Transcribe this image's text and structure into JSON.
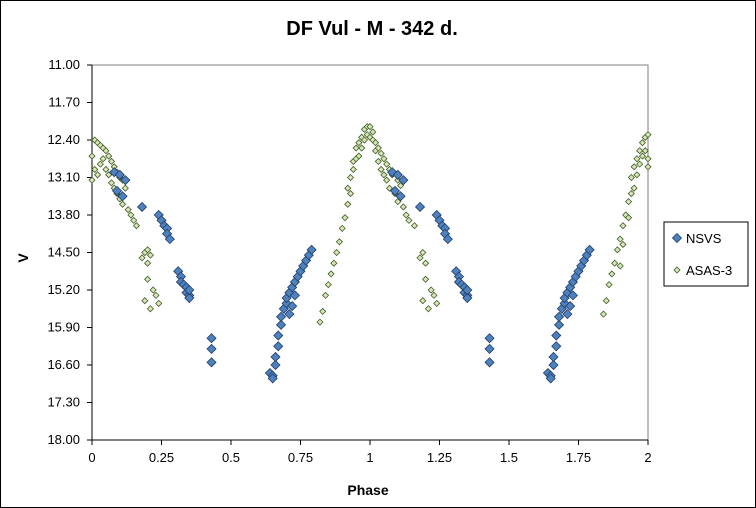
{
  "chart_data": {
    "type": "scatter",
    "title": "DF Vul - M - 342 d.",
    "xlabel": "Phase",
    "ylabel": "V",
    "xlim": [
      0,
      2
    ],
    "ylim": [
      18.0,
      11.0
    ],
    "y_inverted": true,
    "x_ticks": [
      "0",
      "0.25",
      "0.5",
      "0.75",
      "1",
      "1.25",
      "1.5",
      "1.75",
      "2"
    ],
    "y_ticks": [
      "11.00",
      "11.70",
      "12.40",
      "13.10",
      "13.80",
      "14.50",
      "15.20",
      "15.90",
      "16.60",
      "17.30",
      "18.00"
    ],
    "grid": false,
    "legend_position": "right",
    "series": [
      {
        "name": "NSVS",
        "marker": "diamond",
        "color": "#4F81BD",
        "points": [
          [
            0.08,
            13.0
          ],
          [
            0.1,
            13.05
          ],
          [
            0.12,
            13.15
          ],
          [
            0.09,
            13.35
          ],
          [
            0.11,
            13.45
          ],
          [
            0.18,
            13.65
          ],
          [
            0.24,
            13.8
          ],
          [
            0.25,
            13.9
          ],
          [
            0.26,
            14.0
          ],
          [
            0.27,
            14.05
          ],
          [
            0.27,
            14.15
          ],
          [
            0.28,
            14.25
          ],
          [
            0.31,
            14.85
          ],
          [
            0.32,
            14.95
          ],
          [
            0.32,
            15.05
          ],
          [
            0.33,
            15.1
          ],
          [
            0.34,
            15.15
          ],
          [
            0.34,
            15.25
          ],
          [
            0.35,
            15.3
          ],
          [
            0.35,
            15.35
          ],
          [
            0.35,
            15.2
          ],
          [
            0.43,
            16.1
          ],
          [
            0.43,
            16.3
          ],
          [
            0.43,
            16.55
          ],
          [
            0.64,
            16.75
          ],
          [
            0.65,
            16.8
          ],
          [
            0.65,
            16.85
          ],
          [
            0.66,
            16.6
          ],
          [
            0.66,
            16.45
          ],
          [
            0.67,
            16.25
          ],
          [
            0.67,
            16.05
          ],
          [
            0.68,
            15.85
          ],
          [
            0.68,
            15.7
          ],
          [
            0.69,
            15.55
          ],
          [
            0.7,
            15.45
          ],
          [
            0.7,
            15.35
          ],
          [
            0.71,
            15.25
          ],
          [
            0.72,
            15.15
          ],
          [
            0.73,
            15.05
          ],
          [
            0.74,
            14.95
          ],
          [
            0.75,
            14.85
          ],
          [
            0.76,
            14.75
          ],
          [
            0.77,
            14.65
          ],
          [
            0.78,
            14.55
          ],
          [
            0.79,
            14.45
          ],
          [
            0.71,
            15.65
          ],
          [
            0.72,
            15.5
          ],
          [
            0.73,
            15.3
          ],
          [
            1.08,
            13.0
          ],
          [
            1.1,
            13.05
          ],
          [
            1.12,
            13.15
          ],
          [
            1.09,
            13.35
          ],
          [
            1.11,
            13.45
          ],
          [
            1.18,
            13.65
          ],
          [
            1.24,
            13.8
          ],
          [
            1.25,
            13.9
          ],
          [
            1.26,
            14.0
          ],
          [
            1.27,
            14.05
          ],
          [
            1.27,
            14.15
          ],
          [
            1.28,
            14.25
          ],
          [
            1.31,
            14.85
          ],
          [
            1.32,
            14.95
          ],
          [
            1.32,
            15.05
          ],
          [
            1.33,
            15.1
          ],
          [
            1.34,
            15.15
          ],
          [
            1.34,
            15.25
          ],
          [
            1.35,
            15.3
          ],
          [
            1.35,
            15.35
          ],
          [
            1.35,
            15.2
          ],
          [
            1.43,
            16.1
          ],
          [
            1.43,
            16.3
          ],
          [
            1.43,
            16.55
          ],
          [
            1.64,
            16.75
          ],
          [
            1.65,
            16.8
          ],
          [
            1.65,
            16.85
          ],
          [
            1.66,
            16.6
          ],
          [
            1.66,
            16.45
          ],
          [
            1.67,
            16.25
          ],
          [
            1.67,
            16.05
          ],
          [
            1.68,
            15.85
          ],
          [
            1.68,
            15.7
          ],
          [
            1.69,
            15.55
          ],
          [
            1.7,
            15.45
          ],
          [
            1.7,
            15.35
          ],
          [
            1.71,
            15.25
          ],
          [
            1.72,
            15.15
          ],
          [
            1.73,
            15.05
          ],
          [
            1.74,
            14.95
          ],
          [
            1.75,
            14.85
          ],
          [
            1.76,
            14.75
          ],
          [
            1.77,
            14.65
          ],
          [
            1.78,
            14.55
          ],
          [
            1.79,
            14.45
          ],
          [
            1.71,
            15.65
          ],
          [
            1.72,
            15.5
          ],
          [
            1.73,
            15.3
          ]
        ]
      },
      {
        "name": "ASAS-3",
        "marker": "diamond-small",
        "color": "#9BBB59",
        "points": [
          [
            0.0,
            12.7
          ],
          [
            0.0,
            13.15
          ],
          [
            0.01,
            12.4
          ],
          [
            0.01,
            12.95
          ],
          [
            0.02,
            12.45
          ],
          [
            0.02,
            13.05
          ],
          [
            0.03,
            12.5
          ],
          [
            0.03,
            12.85
          ],
          [
            0.04,
            12.55
          ],
          [
            0.04,
            12.75
          ],
          [
            0.05,
            12.6
          ],
          [
            0.05,
            12.95
          ],
          [
            0.06,
            12.7
          ],
          [
            0.06,
            13.05
          ],
          [
            0.07,
            12.8
          ],
          [
            0.07,
            13.2
          ],
          [
            0.08,
            12.9
          ],
          [
            0.08,
            13.3
          ],
          [
            0.09,
            13.0
          ],
          [
            0.09,
            13.4
          ],
          [
            0.1,
            13.1
          ],
          [
            0.1,
            13.5
          ],
          [
            0.11,
            13.15
          ],
          [
            0.11,
            13.6
          ],
          [
            0.12,
            13.3
          ],
          [
            0.13,
            13.7
          ],
          [
            0.14,
            13.8
          ],
          [
            0.15,
            13.9
          ],
          [
            0.16,
            14.0
          ],
          [
            0.18,
            14.6
          ],
          [
            0.19,
            14.5
          ],
          [
            0.2,
            14.7
          ],
          [
            0.2,
            15.0
          ],
          [
            0.19,
            15.4
          ],
          [
            0.21,
            15.55
          ],
          [
            0.22,
            15.2
          ],
          [
            0.23,
            15.3
          ],
          [
            0.24,
            15.45
          ],
          [
            0.2,
            14.45
          ],
          [
            0.21,
            14.55
          ],
          [
            0.82,
            15.8
          ],
          [
            0.83,
            15.6
          ],
          [
            0.84,
            15.3
          ],
          [
            0.85,
            15.1
          ],
          [
            0.86,
            14.9
          ],
          [
            0.87,
            14.7
          ],
          [
            0.88,
            14.5
          ],
          [
            0.89,
            14.3
          ],
          [
            0.9,
            14.05
          ],
          [
            0.91,
            13.85
          ],
          [
            0.92,
            13.6
          ],
          [
            0.92,
            13.3
          ],
          [
            0.93,
            13.1
          ],
          [
            0.93,
            13.4
          ],
          [
            0.94,
            12.95
          ],
          [
            0.94,
            12.8
          ],
          [
            0.95,
            12.75
          ],
          [
            0.95,
            12.55
          ],
          [
            0.96,
            12.45
          ],
          [
            0.96,
            12.7
          ],
          [
            0.97,
            12.35
          ],
          [
            0.97,
            12.55
          ],
          [
            0.98,
            12.2
          ],
          [
            0.98,
            12.4
          ],
          [
            0.99,
            12.15
          ],
          [
            0.99,
            12.3
          ],
          [
            1.0,
            12.15
          ],
          [
            1.0,
            12.35
          ],
          [
            1.01,
            12.25
          ],
          [
            1.01,
            12.4
          ],
          [
            1.02,
            12.45
          ],
          [
            1.02,
            12.6
          ],
          [
            1.03,
            12.55
          ],
          [
            1.03,
            12.8
          ],
          [
            1.04,
            12.65
          ],
          [
            1.04,
            12.95
          ],
          [
            1.05,
            12.75
          ],
          [
            1.05,
            13.05
          ],
          [
            1.06,
            12.85
          ],
          [
            1.06,
            13.15
          ],
          [
            1.07,
            12.95
          ],
          [
            1.07,
            13.3
          ],
          [
            1.08,
            13.05
          ],
          [
            1.09,
            13.4
          ],
          [
            1.1,
            13.15
          ],
          [
            1.1,
            13.55
          ],
          [
            1.11,
            13.25
          ],
          [
            1.12,
            13.65
          ],
          [
            1.13,
            13.8
          ],
          [
            1.14,
            13.9
          ],
          [
            1.16,
            14.0
          ],
          [
            1.18,
            14.6
          ],
          [
            1.19,
            14.5
          ],
          [
            1.2,
            14.7
          ],
          [
            1.2,
            15.0
          ],
          [
            1.19,
            15.4
          ],
          [
            1.21,
            15.55
          ],
          [
            1.22,
            15.2
          ],
          [
            1.23,
            15.3
          ],
          [
            1.24,
            15.45
          ],
          [
            1.84,
            15.65
          ],
          [
            1.85,
            15.4
          ],
          [
            1.86,
            15.1
          ],
          [
            1.87,
            14.9
          ],
          [
            1.88,
            14.7
          ],
          [
            1.89,
            14.45
          ],
          [
            1.9,
            14.75
          ],
          [
            1.9,
            14.25
          ],
          [
            1.91,
            14.0
          ],
          [
            1.91,
            14.35
          ],
          [
            1.92,
            13.8
          ],
          [
            1.93,
            13.55
          ],
          [
            1.93,
            13.85
          ],
          [
            1.94,
            13.4
          ],
          [
            1.94,
            13.1
          ],
          [
            1.95,
            13.3
          ],
          [
            1.95,
            12.9
          ],
          [
            1.96,
            12.75
          ],
          [
            1.96,
            13.05
          ],
          [
            1.97,
            12.6
          ],
          [
            1.97,
            12.85
          ],
          [
            1.98,
            12.45
          ],
          [
            1.98,
            12.7
          ],
          [
            1.99,
            12.35
          ],
          [
            1.99,
            12.6
          ],
          [
            2.0,
            12.3
          ],
          [
            2.0,
            12.75
          ],
          [
            2.0,
            12.9
          ]
        ]
      }
    ]
  }
}
